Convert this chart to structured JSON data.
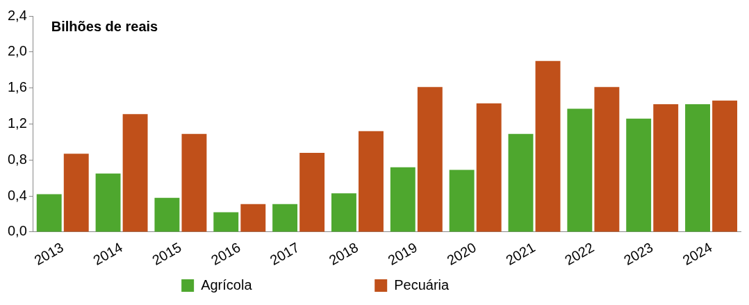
{
  "chart_data": {
    "type": "bar",
    "title": "Bilhões de reais",
    "categories": [
      "2013",
      "2014",
      "2015",
      "2016",
      "2017",
      "2018",
      "2019",
      "2020",
      "2021",
      "2022",
      "2023",
      "2024"
    ],
    "series": [
      {
        "name": "Agrícola",
        "color": "#4ea72e",
        "values": [
          0.42,
          0.65,
          0.38,
          0.22,
          0.31,
          0.43,
          0.72,
          0.69,
          1.09,
          1.37,
          1.26,
          1.42
        ]
      },
      {
        "name": "Pecuária",
        "color": "#c0501a",
        "values": [
          0.87,
          1.31,
          1.09,
          0.31,
          0.88,
          1.12,
          1.61,
          1.43,
          1.9,
          1.61,
          1.42,
          1.46
        ]
      }
    ],
    "ylim": [
      0,
      2.4
    ],
    "yticks": [
      {
        "value": 0,
        "label": "0,0"
      },
      {
        "value": 0.4,
        "label": "0,4"
      },
      {
        "value": 0.8,
        "label": "0,8"
      },
      {
        "value": 1.2,
        "label": "1,2"
      },
      {
        "value": 1.6,
        "label": "1,6"
      },
      {
        "value": 2,
        "label": "2,0"
      },
      {
        "value": 2.4,
        "label": "2,4"
      }
    ],
    "grid": false,
    "legend": "bottom"
  }
}
